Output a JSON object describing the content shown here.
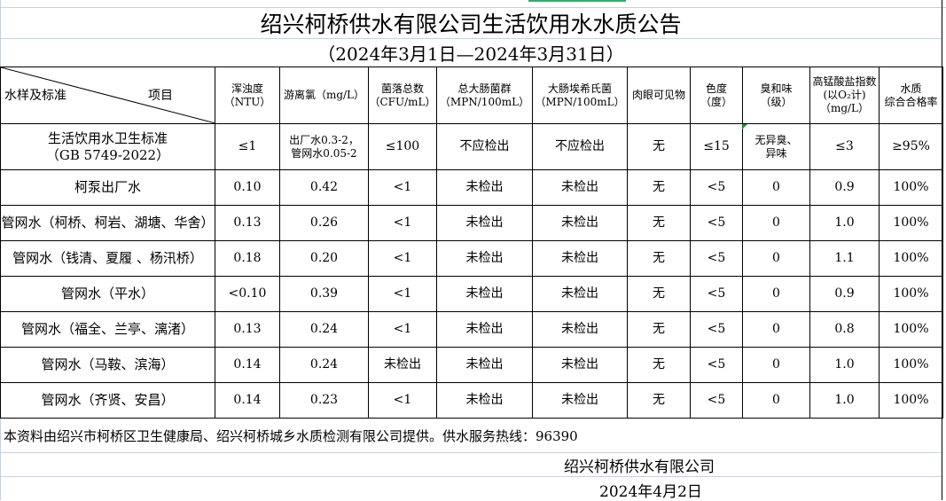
{
  "title": "绍兴柯桥供水有限公司生活饮用水水质公告",
  "subtitle": "（2024年3月1日—2024年3月31日）",
  "header": {
    "corner_left": "水样及标准",
    "corner_right": "项目",
    "columns": [
      "浑浊度\n（NTU）",
      "游离氯（mg/L）",
      "菌落总数\n（CFU/mL）",
      "总大肠菌群\n（MPN/100mL）",
      "大肠埃希氏菌\n（MPN/100mL）",
      "肉眼可见物",
      "色度\n（度）",
      "臭和味\n（级）",
      "高锰酸盐指数(以O₂计)\n（mg/L）",
      "水质\n综合合格率"
    ]
  },
  "standard": {
    "name": "生活饮用水卫生标准\n（GB 5749-2022）",
    "values": [
      "≤1",
      "出厂水0.3-2，\n管网水0.05-2",
      "≤100",
      "不应检出",
      "不应检出",
      "无",
      "≤15",
      "无异臭、\n异味",
      "≤3",
      "≥95%"
    ]
  },
  "rows": [
    {
      "name": "柯泵出厂水",
      "values": [
        "0.10",
        "0.42",
        "<1",
        "未检出",
        "未检出",
        "无",
        "<5",
        "0",
        "0.9",
        "100%"
      ]
    },
    {
      "name": "管网水（柯桥、柯岩、湖塘、华舍）",
      "values": [
        "0.13",
        "0.26",
        "<1",
        "未检出",
        "未检出",
        "无",
        "<5",
        "0",
        "1.0",
        "100%"
      ]
    },
    {
      "name": "管网水（钱清、夏履 、杨汛桥）",
      "values": [
        "0.18",
        "0.20",
        "<1",
        "未检出",
        "未检出",
        "无",
        "<5",
        "0",
        "1.1",
        "100%"
      ]
    },
    {
      "name": "管网水（平水）",
      "values": [
        "<0.10",
        "0.39",
        "<1",
        "未检出",
        "未检出",
        "无",
        "<5",
        "0",
        "0.9",
        "100%"
      ]
    },
    {
      "name": "管网水（福全、兰亭、漓渚）",
      "values": [
        "0.13",
        "0.24",
        "<1",
        "未检出",
        "未检出",
        "无",
        "<5",
        "0",
        "0.8",
        "100%"
      ]
    },
    {
      "name": "管网水（马鞍、滨海）",
      "values": [
        "0.14",
        "0.24",
        "未检出",
        "未检出",
        "未检出",
        "无",
        "<5",
        "0",
        "1.0",
        "100%"
      ]
    },
    {
      "name": "管网水（齐贤、安昌）",
      "values": [
        "0.14",
        "0.23",
        "<1",
        "未检出",
        "未检出",
        "无",
        "<5",
        "0",
        "1.0",
        "100%"
      ]
    }
  ],
  "footer": {
    "note": "本资料由绍兴市柯桥区卫生健康局、绍兴柯桥城乡水质检测有限公司提供。供水服务热线：96390",
    "company": "绍兴柯桥供水有限公司",
    "date": "2024年4月2日"
  }
}
